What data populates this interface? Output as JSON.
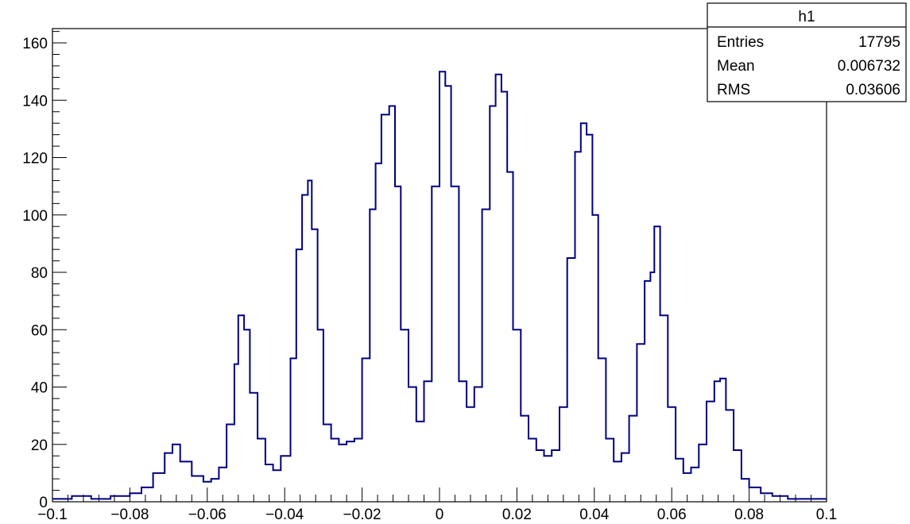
{
  "stats_box": {
    "name": "h1",
    "rows": [
      {
        "label": "Entries",
        "value": "17795"
      },
      {
        "label": "Mean",
        "value": "0.006732"
      },
      {
        "label": "RMS",
        "value": "0.03606"
      }
    ]
  },
  "colors": {
    "line": "#00007f",
    "axis": "#000000",
    "background": "#ffffff"
  },
  "chart_data": {
    "type": "line",
    "title": "",
    "xlabel": "",
    "ylabel": "",
    "xlim": [
      -0.1,
      0.1
    ],
    "ylim": [
      0,
      165
    ],
    "grid": false,
    "legend": "top-right stats box",
    "x_ticks": [
      -0.1,
      -0.08,
      -0.06,
      -0.04,
      -0.02,
      0,
      0.02,
      0.04,
      0.06,
      0.08,
      0.1
    ],
    "x_tick_labels": [
      "−0.1",
      "−0.08",
      "−0.06",
      "−0.04",
      "−0.02",
      "0",
      "0.02",
      "0.04",
      "0.06",
      "0.08",
      "0.1"
    ],
    "y_ticks": [
      0,
      20,
      40,
      60,
      80,
      100,
      120,
      140,
      160
    ],
    "y_tick_labels": [
      "0",
      "20",
      "40",
      "60",
      "80",
      "100",
      "120",
      "140",
      "160"
    ],
    "series": [
      {
        "x": [
          -0.1,
          -0.095,
          -0.09,
          -0.085,
          -0.08,
          -0.077,
          -0.074,
          -0.071,
          -0.069,
          -0.067,
          -0.064,
          -0.061,
          -0.059,
          -0.057,
          -0.055,
          -0.053,
          -0.052,
          -0.0505,
          -0.049,
          -0.047,
          -0.045,
          -0.043,
          -0.041,
          -0.0385,
          -0.037,
          -0.0355,
          -0.034,
          -0.033,
          -0.0315,
          -0.03,
          -0.028,
          -0.026,
          -0.024,
          -0.022,
          -0.02,
          -0.018,
          -0.0165,
          -0.015,
          -0.013,
          -0.0115,
          -0.01,
          -0.008,
          -0.006,
          -0.004,
          -0.002,
          0.0,
          0.0015,
          0.003,
          0.005,
          0.007,
          0.009,
          0.011,
          0.013,
          0.0145,
          0.016,
          0.0175,
          0.019,
          0.021,
          0.023,
          0.025,
          0.027,
          0.029,
          0.031,
          0.033,
          0.035,
          0.0365,
          0.038,
          0.0395,
          0.041,
          0.043,
          0.045,
          0.047,
          0.049,
          0.051,
          0.053,
          0.0545,
          0.0555,
          0.057,
          0.059,
          0.061,
          0.063,
          0.065,
          0.067,
          0.069,
          0.071,
          0.0725,
          0.074,
          0.076,
          0.078,
          0.08,
          0.083,
          0.086,
          0.09,
          0.095,
          0.1
        ],
        "y": [
          1,
          2,
          1,
          2,
          3,
          5,
          10,
          17,
          20,
          14,
          9,
          7,
          8,
          12,
          27,
          48,
          65,
          60,
          38,
          22,
          13,
          11,
          16,
          50,
          88,
          107,
          112,
          95,
          60,
          27,
          22,
          20,
          21,
          22,
          50,
          102,
          118,
          135,
          138,
          110,
          60,
          40,
          28,
          42,
          110,
          150,
          145,
          110,
          42,
          33,
          40,
          102,
          138,
          149,
          143,
          115,
          60,
          30,
          22,
          18,
          16,
          18,
          33,
          85,
          122,
          132,
          128,
          100,
          50,
          22,
          14,
          17,
          30,
          55,
          77,
          80,
          96,
          65,
          33,
          15,
          10,
          12,
          20,
          35,
          42,
          43,
          32,
          18,
          8,
          5,
          3,
          2,
          1,
          1,
          1
        ]
      }
    ]
  }
}
